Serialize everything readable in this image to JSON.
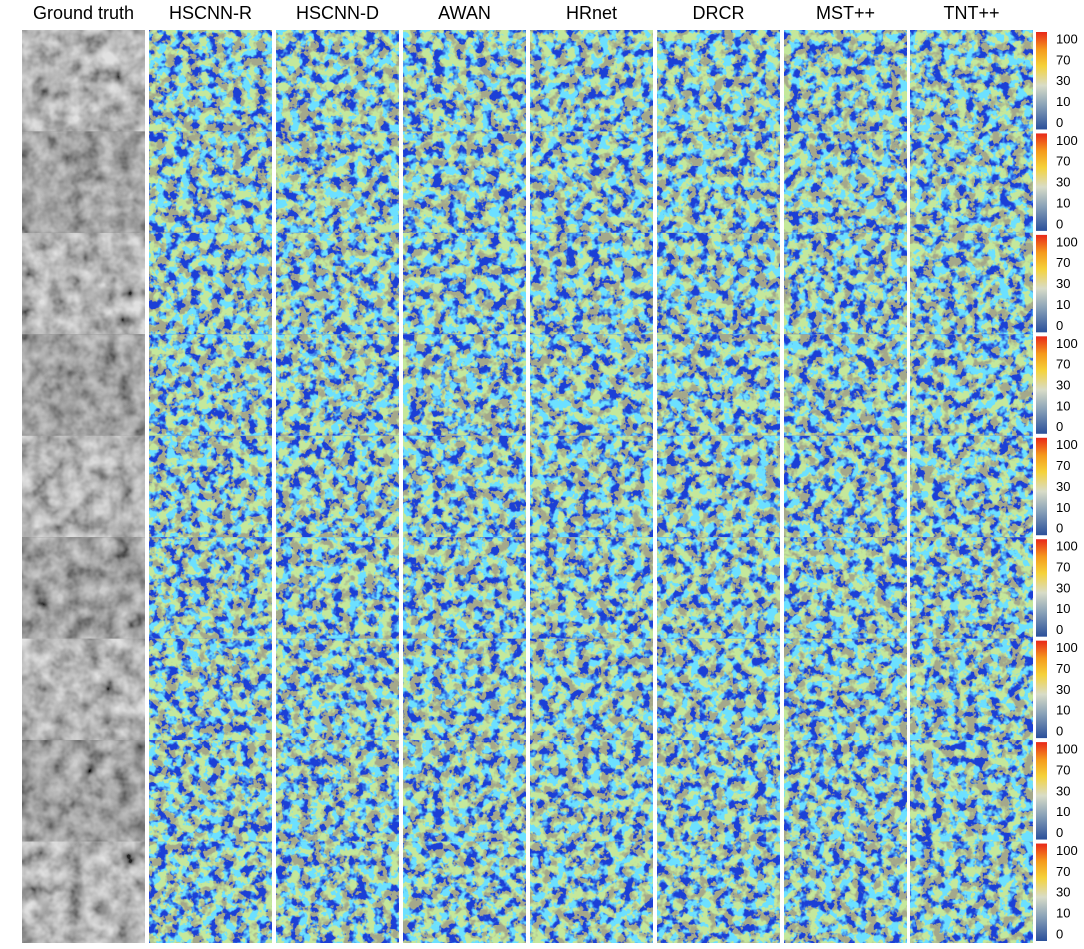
{
  "columns": [
    "Ground truth",
    "HSCNN-R",
    "HSCNN-D",
    "AWAN",
    "HRnet",
    "DRCR",
    "MST++",
    "TNT++"
  ],
  "colorbar_ticks": [
    100,
    70,
    30,
    10,
    0
  ],
  "rows": 9
}
